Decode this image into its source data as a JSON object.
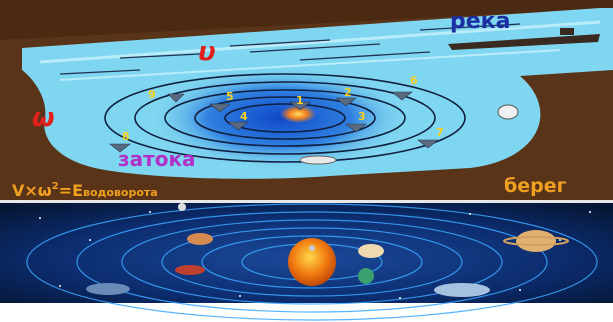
{
  "labels": {
    "river": "река",
    "bay": "затока",
    "shore": "берег",
    "velocity": "υ",
    "omega": "ω",
    "formula_main": "V×ω",
    "formula_sup": "2",
    "formula_eq": "=E",
    "formula_sub": "водоворота",
    "markers": [
      "1",
      "2",
      "3",
      "4",
      "5",
      "6",
      "7",
      "8",
      "9"
    ]
  },
  "colors": {
    "earth_bank": "#5a3418",
    "water": "#7fd6f0",
    "whirl_center": "#1f66d6",
    "river_label": "#1c2fa0",
    "bay_label": "#b030c8",
    "velocity_label": "#e0201c",
    "formula_label": "#f0a020",
    "shore_label": "#f0a020",
    "space": "#0a2a66",
    "orbit": "#3aa6ff"
  }
}
